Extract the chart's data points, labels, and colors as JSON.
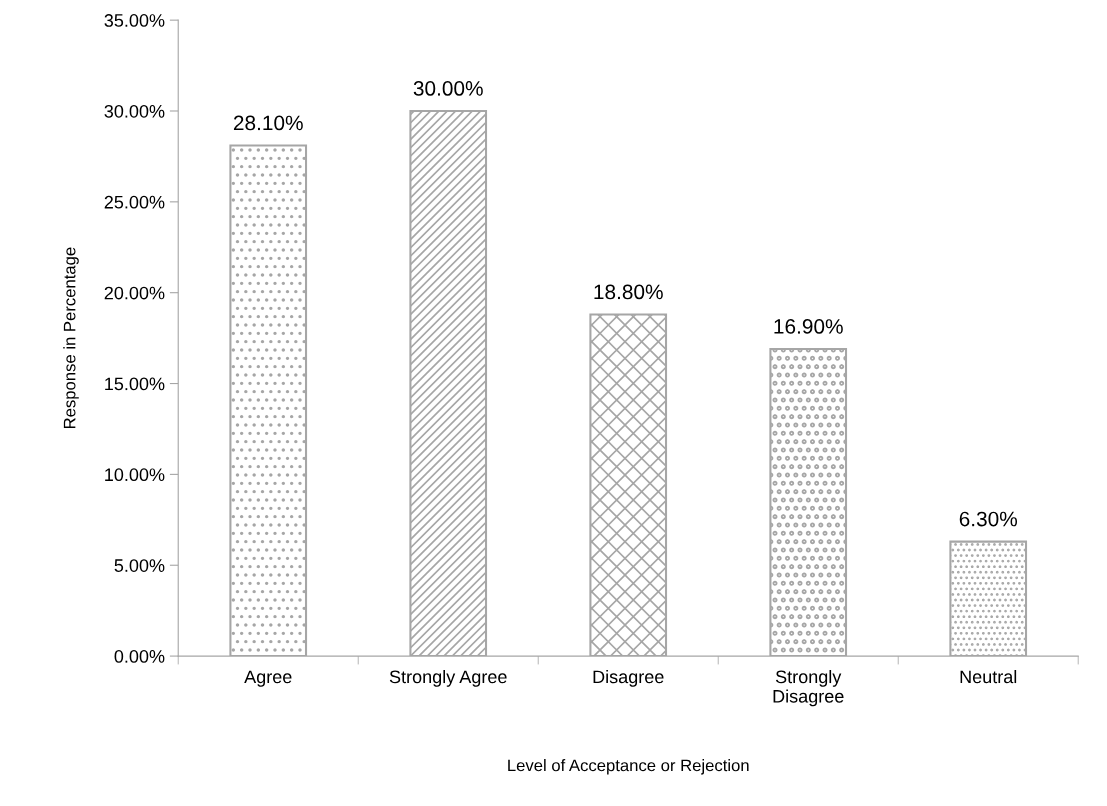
{
  "chart_data": {
    "type": "bar",
    "xlabel": "Level of Acceptance or Rejection",
    "ylabel": "Response in Percentage",
    "categories": [
      "Agree",
      "Strongly Agree",
      "Disagree",
      "Strongly\nDisagree",
      "Neutral"
    ],
    "values": [
      28.1,
      30.0,
      18.8,
      16.9,
      6.3
    ],
    "colors": [
      "#a6a6a6",
      "#a6a6a6",
      "#a6a6a6",
      "#a6a6a6",
      "#a6a6a6"
    ],
    "value_labels": [
      "28.10%",
      "30.00%",
      "18.80%",
      "16.90%",
      "6.30%"
    ],
    "ylim": [
      0,
      35
    ],
    "yticks": [
      {
        "value": 0,
        "label": "0.00%"
      },
      {
        "value": 5,
        "label": "5.00%"
      },
      {
        "value": 10,
        "label": "10.00%"
      },
      {
        "value": 15,
        "label": "15.00%"
      },
      {
        "value": 20,
        "label": "20.00%"
      },
      {
        "value": 25,
        "label": "25.00%"
      },
      {
        "value": 30,
        "label": "30.00%"
      },
      {
        "value": 35,
        "label": "35.00%"
      }
    ],
    "grid": false,
    "legend": false
  }
}
